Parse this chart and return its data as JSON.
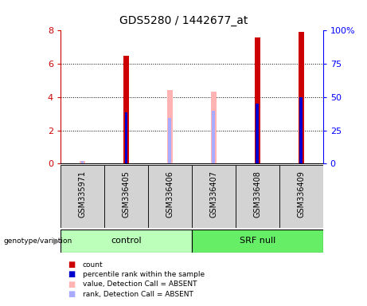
{
  "title": "GDS5280 / 1442677_at",
  "samples": [
    "GSM335971",
    "GSM336405",
    "GSM336406",
    "GSM336407",
    "GSM336408",
    "GSM336409"
  ],
  "count_values": [
    null,
    6.5,
    null,
    null,
    7.6,
    7.9
  ],
  "percentile_rank_values": [
    null,
    3.1,
    null,
    null,
    3.6,
    4.0
  ],
  "absent_value_values": [
    0.15,
    null,
    4.45,
    4.35,
    null,
    null
  ],
  "absent_rank_values": [
    0.18,
    null,
    2.75,
    3.2,
    null,
    null
  ],
  "ylim": [
    0,
    8
  ],
  "y2lim": [
    0,
    100
  ],
  "yticks": [
    0,
    2,
    4,
    6,
    8
  ],
  "y2ticks": [
    0,
    25,
    50,
    75,
    100
  ],
  "y2ticklabels": [
    "0",
    "25",
    "50",
    "75",
    "100%"
  ],
  "count_color": "#cc0000",
  "percentile_color": "#0000cc",
  "absent_value_color": "#ffb3b3",
  "absent_rank_color": "#aaaaff",
  "control_color": "#bbffbb",
  "srf_color": "#66ee66",
  "group_label_arrow": "▶"
}
